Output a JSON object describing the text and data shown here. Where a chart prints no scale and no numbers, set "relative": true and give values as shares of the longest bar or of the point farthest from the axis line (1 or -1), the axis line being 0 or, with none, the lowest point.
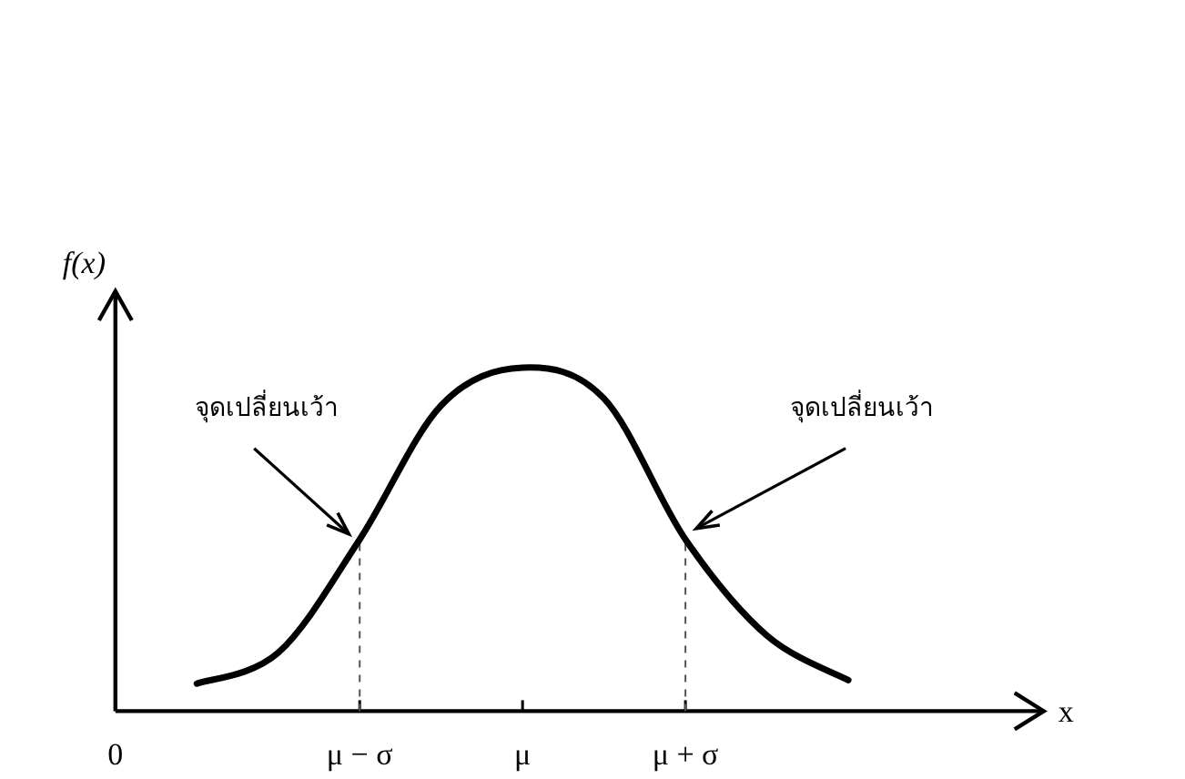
{
  "chart_data": {
    "type": "line",
    "relative": true,
    "xlabel": "x",
    "ylabel": "f(x)",
    "tick_labels": "x",
    "categories": [
      "0",
      null,
      null,
      "μ − σ",
      null,
      "μ",
      null,
      "μ + σ",
      null,
      null,
      null,
      null
    ],
    "values": [
      null,
      0.08,
      0.17,
      0.5,
      0.89,
      1.0,
      0.91,
      0.5,
      0.22,
      0.09,
      null,
      null
    ],
    "color": "#000000",
    "line_style": "solid",
    "ref_lines": [
      {
        "axis": "x",
        "value": "μ − σ",
        "line_style": "dashed"
      },
      {
        "axis": "x",
        "value": "μ + σ",
        "line_style": "dashed"
      }
    ],
    "annotations": [
      {
        "text": "จุดเปลี่ยนเว้า",
        "x": "μ − σ",
        "y": 0.5
      },
      {
        "text": "จุดเปลี่ยนเว้า",
        "x": "μ + σ",
        "y": 0.5
      }
    ]
  }
}
